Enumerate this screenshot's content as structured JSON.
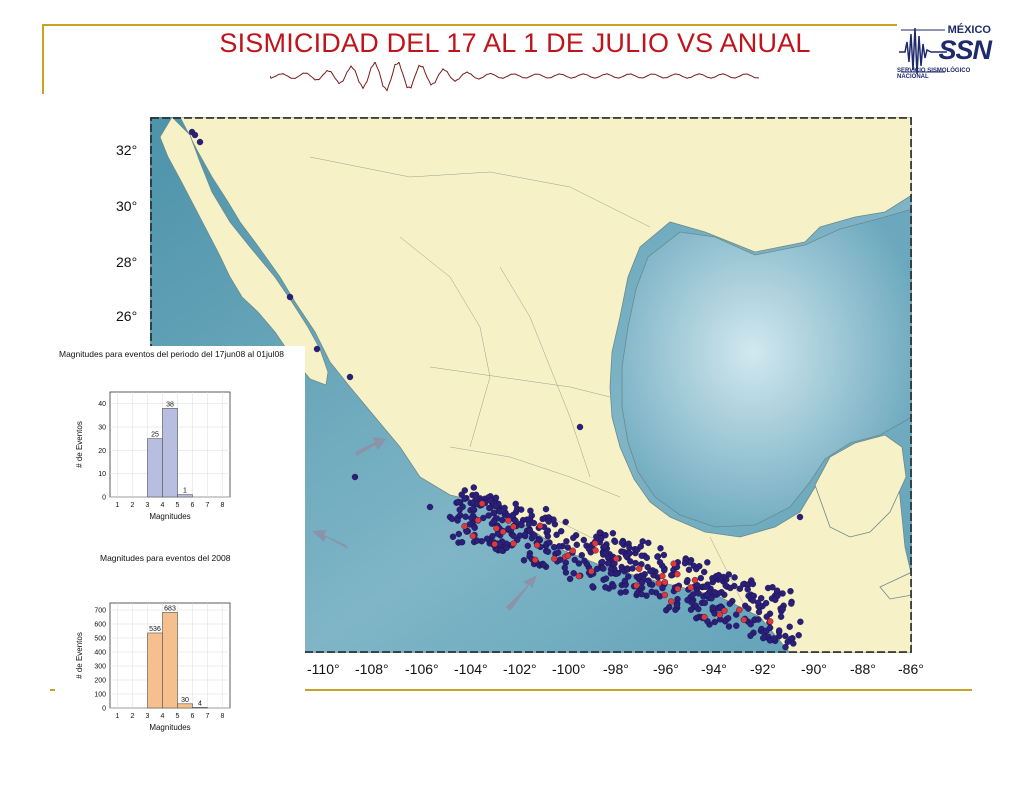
{
  "title": "SISMICIDAD DEL 17 AL 1 DE JULIO VS ANUAL",
  "logo": {
    "country": "MÉXICO",
    "name": "SSN",
    "subtitle": "SERVICIO SISMOLÓGICO NACIONAL"
  },
  "map": {
    "lat_labels": [
      "32°",
      "30°",
      "28°",
      "26°"
    ],
    "lon_labels": [
      "-110°",
      "-108°",
      "-106°",
      "-104°",
      "-102°",
      "-100°",
      "-98°",
      "-96°",
      "-94°",
      "-92°",
      "-90°",
      "-88°",
      "-86°"
    ],
    "colors": {
      "ocean": "#5d9fb5",
      "land": "#f6f1c7",
      "event_year": "#2a1f7a",
      "event_period": "#e0373a"
    }
  },
  "chart_data": [
    {
      "type": "bar",
      "title": "Magnitudes para eventos del periodo del 17jun08 al 01jul08",
      "xlabel": "Magnitudes",
      "ylabel": "# de Eventos",
      "x_ticks": [
        "1",
        "2",
        "3",
        "4",
        "5",
        "6",
        "7",
        "8"
      ],
      "y_ticks": [
        "0",
        "10",
        "20",
        "30",
        "40"
      ],
      "ylim": [
        0,
        45
      ],
      "categories": [
        "3-4",
        "4-5",
        "5-6"
      ],
      "values": [
        25,
        38,
        1
      ],
      "data_labels": [
        "25",
        "38",
        "1"
      ],
      "color": "#b8bee0"
    },
    {
      "type": "bar",
      "title": "Magnitudes para eventos del 2008",
      "xlabel": "Magnitudes",
      "ylabel": "# de Eventos",
      "x_ticks": [
        "1",
        "2",
        "3",
        "4",
        "5",
        "6",
        "7",
        "8"
      ],
      "y_ticks": [
        "0",
        "100",
        "200",
        "300",
        "400",
        "500",
        "600",
        "700"
      ],
      "ylim": [
        0,
        750
      ],
      "categories": [
        "3-4",
        "4-5",
        "5-6",
        "6-7"
      ],
      "values": [
        536,
        683,
        30,
        4
      ],
      "data_labels": [
        "536",
        "683",
        "30",
        "4"
      ],
      "color": "#f5c08e"
    }
  ]
}
